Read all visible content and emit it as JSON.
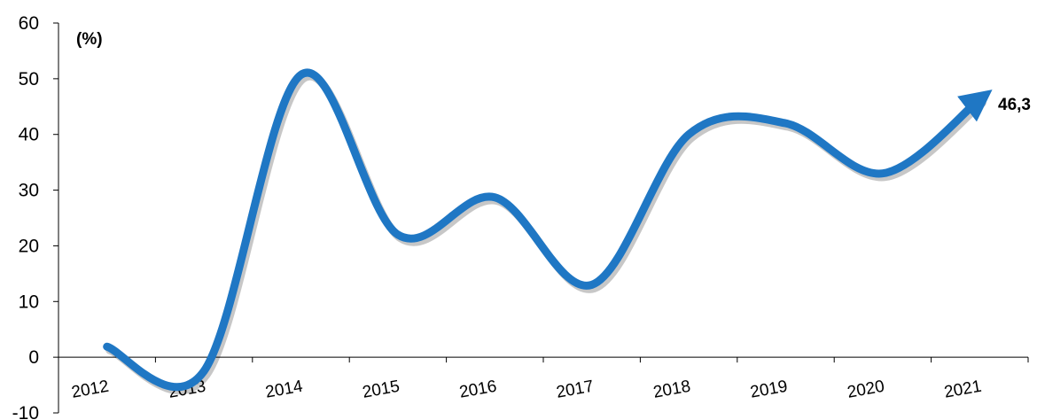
{
  "chart_data": {
    "type": "line",
    "unit_label": "(%)",
    "categories": [
      "2012",
      "2013",
      "2014",
      "2015",
      "2016",
      "2017",
      "2018",
      "2019",
      "2020",
      "2021"
    ],
    "series": [
      {
        "values": [
          1.9,
          -2.5,
          50.7,
          22.0,
          28.7,
          13.0,
          40.0,
          42.0,
          33.0,
          46.3
        ],
        "color": "#1f77c4"
      }
    ],
    "ylim": [
      -10,
      60
    ],
    "yticks": [
      "60",
      "50",
      "40",
      "30",
      "20",
      "10",
      "0",
      "-10"
    ],
    "end_label": "46,3",
    "grid": false,
    "smooth": true,
    "end_arrow": true
  }
}
